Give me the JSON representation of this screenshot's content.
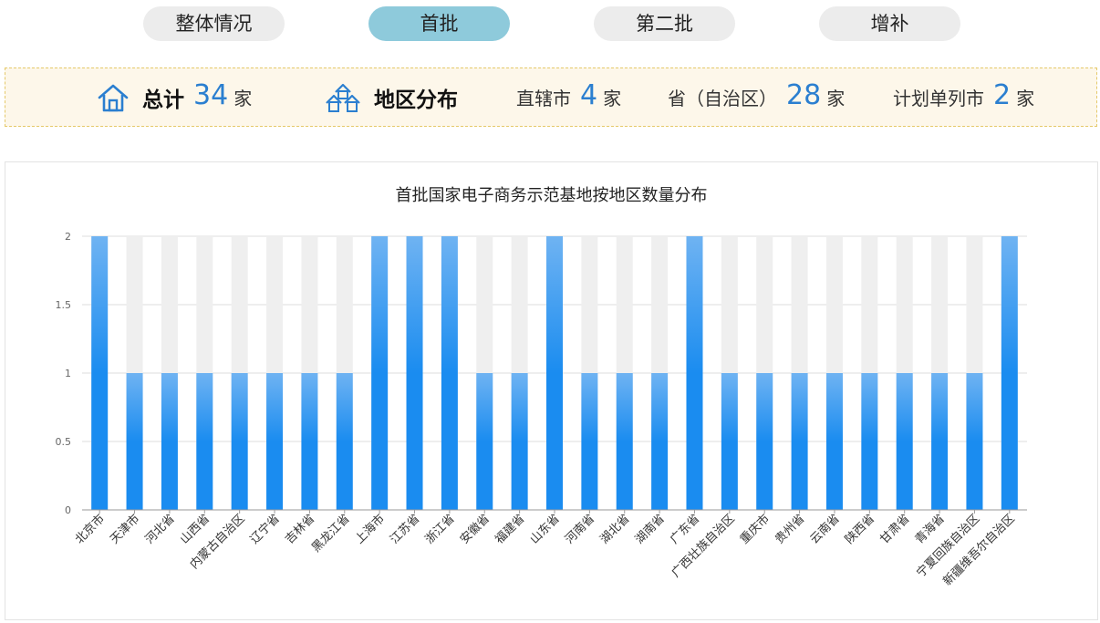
{
  "tabs": [
    {
      "label": "整体情况",
      "active": false
    },
    {
      "label": "首批",
      "active": true
    },
    {
      "label": "第二批",
      "active": false
    },
    {
      "label": "增补",
      "active": false
    }
  ],
  "summary": {
    "total_label": "总计",
    "total_value": "34",
    "unit": "家",
    "region_label": "地区分布",
    "municipality_label": "直辖市",
    "municipality_value": "4",
    "province_label": "省（自治区）",
    "province_value": "28",
    "planned_city_label": "计划单列市",
    "planned_city_value": "2",
    "icons": {
      "total": "house-icon",
      "region": "houses-group-icon"
    },
    "accent_color": "#2b7fd0"
  },
  "chart_data": {
    "type": "bar",
    "title": "首批国家电子商务示范基地按地区数量分布",
    "categories": [
      "北京市",
      "天津市",
      "河北省",
      "山西省",
      "内蒙古自治区",
      "辽宁省",
      "吉林省",
      "黑龙江省",
      "上海市",
      "江苏省",
      "浙江省",
      "安徽省",
      "福建省",
      "山东省",
      "河南省",
      "湖北省",
      "湖南省",
      "广东省",
      "广西壮族自治区",
      "重庆市",
      "贵州省",
      "云南省",
      "陕西省",
      "甘肃省",
      "青海省",
      "宁夏回族自治区",
      "新疆维吾尔自治区"
    ],
    "values": [
      2,
      1,
      1,
      1,
      1,
      1,
      1,
      1,
      2,
      2,
      2,
      1,
      1,
      2,
      1,
      1,
      1,
      2,
      1,
      1,
      1,
      1,
      1,
      1,
      1,
      1,
      2
    ],
    "ylim": [
      0,
      2
    ],
    "yticks": [
      "0",
      "0.5",
      "1",
      "1.5",
      "2"
    ],
    "grid": true,
    "bar_color_top": "#6fb3f2",
    "bar_color_bottom": "#1a8cf0",
    "background_bar_color": "#efefef"
  }
}
